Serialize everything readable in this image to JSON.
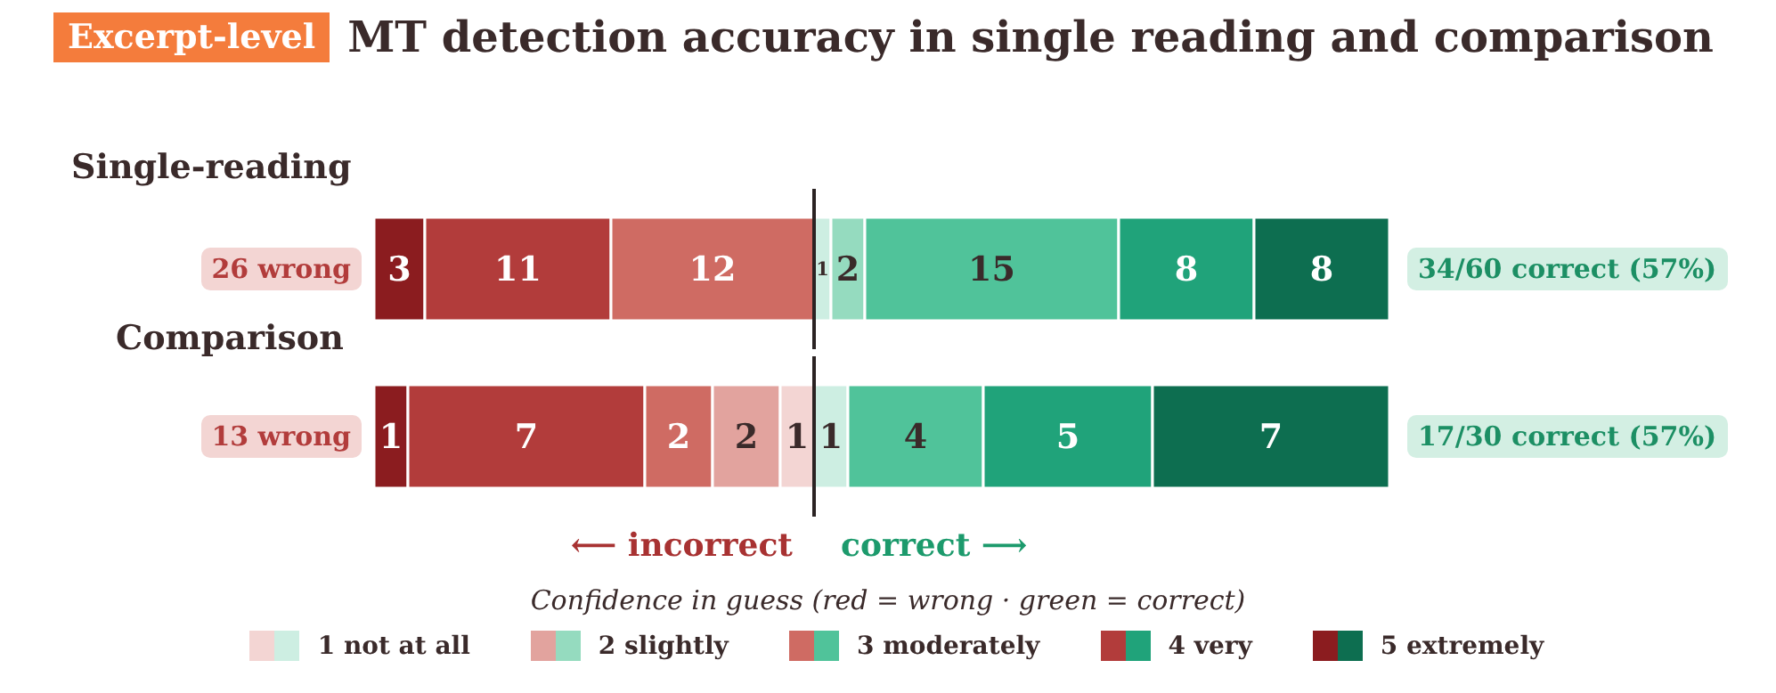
{
  "chart_data": [
    {
      "type": "bar",
      "orientation": "horizontal",
      "stacked": true,
      "data_labels": true,
      "title": "MT detection accuracy in single reading and comparison",
      "subtitle": "Single-reading",
      "annotations": [
        "Excerpt-level",
        "26 wrong",
        "34/60 correct (57%)"
      ],
      "categories": [
        null
      ],
      "xlim": [
        0,
        60
      ],
      "tick_labels": false,
      "ref_lines": [
        {
          "axis": "x",
          "value": 26,
          "color": "#2b2323"
        }
      ],
      "series": [
        {
          "color": "#8b1c1f",
          "values": [
            3
          ]
        },
        {
          "color": "#b23c3b",
          "values": [
            11
          ]
        },
        {
          "color": "#cf6b63",
          "values": [
            12
          ]
        },
        {
          "color": "#e2a39e",
          "values": [
            null
          ]
        },
        {
          "color": "#f3d5d3",
          "values": [
            null
          ]
        },
        {
          "color": "#cdeee2",
          "values": [
            1
          ]
        },
        {
          "color": "#95dbbf",
          "values": [
            2
          ]
        },
        {
          "color": "#50c39a",
          "values": [
            15
          ]
        },
        {
          "color": "#20a37a",
          "values": [
            8
          ]
        },
        {
          "color": "#0d6e50",
          "values": [
            8
          ]
        }
      ]
    },
    {
      "type": "bar",
      "orientation": "horizontal",
      "stacked": true,
      "data_labels": true,
      "subtitle": "Comparison",
      "annotations": [
        "13 wrong",
        "17/30 correct (57%)",
        "⟵  incorrect",
        "correct  ⟶"
      ],
      "categories": [
        null
      ],
      "xlim": [
        0,
        30
      ],
      "tick_labels": false,
      "legend": "bottom",
      "legend_title": "Confidence in guess  (red = wrong · green = correct)",
      "ref_lines": [
        {
          "axis": "x",
          "value": 13,
          "color": "#2b2323"
        }
      ],
      "series": [
        {
          "color": "#8b1c1f",
          "values": [
            1
          ]
        },
        {
          "color": "#b23c3b",
          "values": [
            7
          ]
        },
        {
          "color": "#cf6b63",
          "values": [
            2
          ]
        },
        {
          "color": "#e2a39e",
          "values": [
            2
          ]
        },
        {
          "color": "#f3d5d3",
          "values": [
            1
          ]
        },
        {
          "name": "1 not at all",
          "color": "#cdeee2",
          "values": [
            1
          ]
        },
        {
          "name": "2 slightly",
          "color": "#95dbbf",
          "values": [
            null
          ]
        },
        {
          "name": "3 moderately",
          "color": "#50c39a",
          "values": [
            4
          ]
        },
        {
          "name": "4 very",
          "color": "#20a37a",
          "values": [
            5
          ]
        },
        {
          "name": "5 extremely",
          "color": "#0d6e50",
          "values": [
            7
          ]
        }
      ]
    }
  ]
}
